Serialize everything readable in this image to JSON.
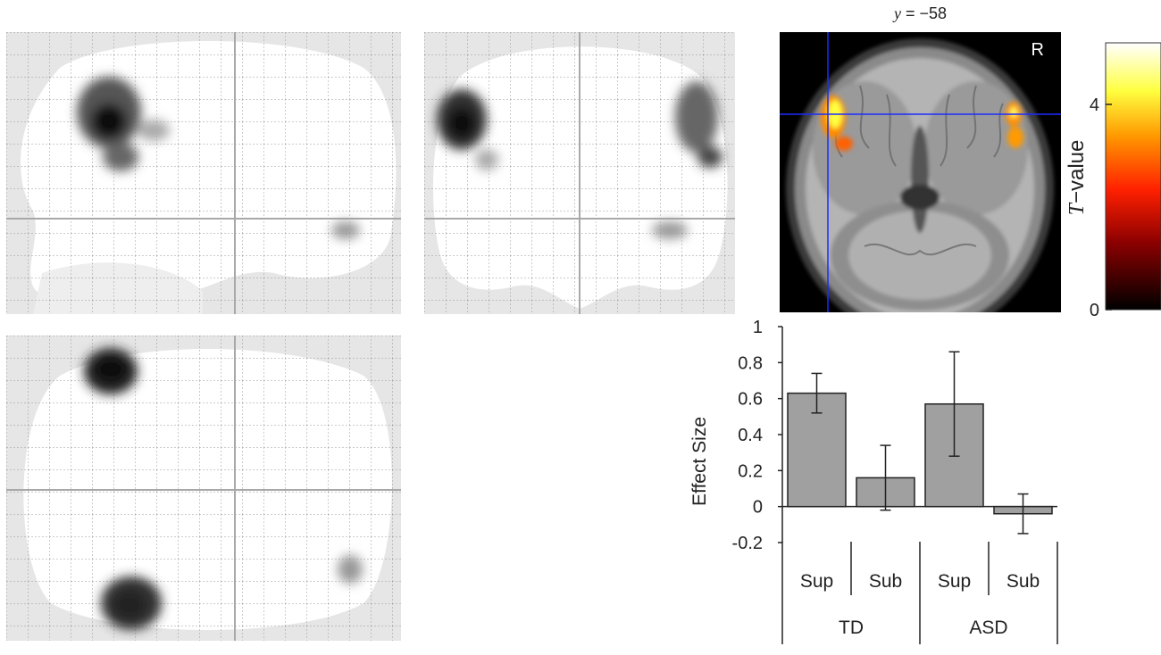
{
  "glass_brain": {
    "views": [
      {
        "id": "sagittal"
      },
      {
        "id": "coronal"
      },
      {
        "id": "axial"
      }
    ]
  },
  "brain_slice": {
    "label_prefix": "y",
    "label_value": "= −58",
    "orientation_marker": "R"
  },
  "colorbar": {
    "label_italic": "T",
    "label_rest": "−value",
    "ticks": [
      {
        "value": 0,
        "label": "0"
      },
      {
        "value": 4,
        "label": "4"
      }
    ],
    "max_value": 5.2,
    "colors": [
      "#000000",
      "#8b0000",
      "#ff2000",
      "#ff9800",
      "#ffff40",
      "#ffffff"
    ]
  },
  "chart_data": {
    "type": "bar",
    "ylabel": "Effect Size",
    "ylim": [
      -0.2,
      1.0
    ],
    "yticks": [
      "-0.2",
      "0",
      "0.2",
      "0.4",
      "0.6",
      "0.8",
      "1"
    ],
    "groups": [
      "TD",
      "ASD"
    ],
    "categories": [
      "Sup",
      "Sub",
      "Sup",
      "Sub"
    ],
    "values": [
      0.63,
      0.16,
      0.57,
      -0.04
    ],
    "errors": [
      0.11,
      0.18,
      0.29,
      0.11
    ],
    "bar_color": "#a0a0a0"
  }
}
